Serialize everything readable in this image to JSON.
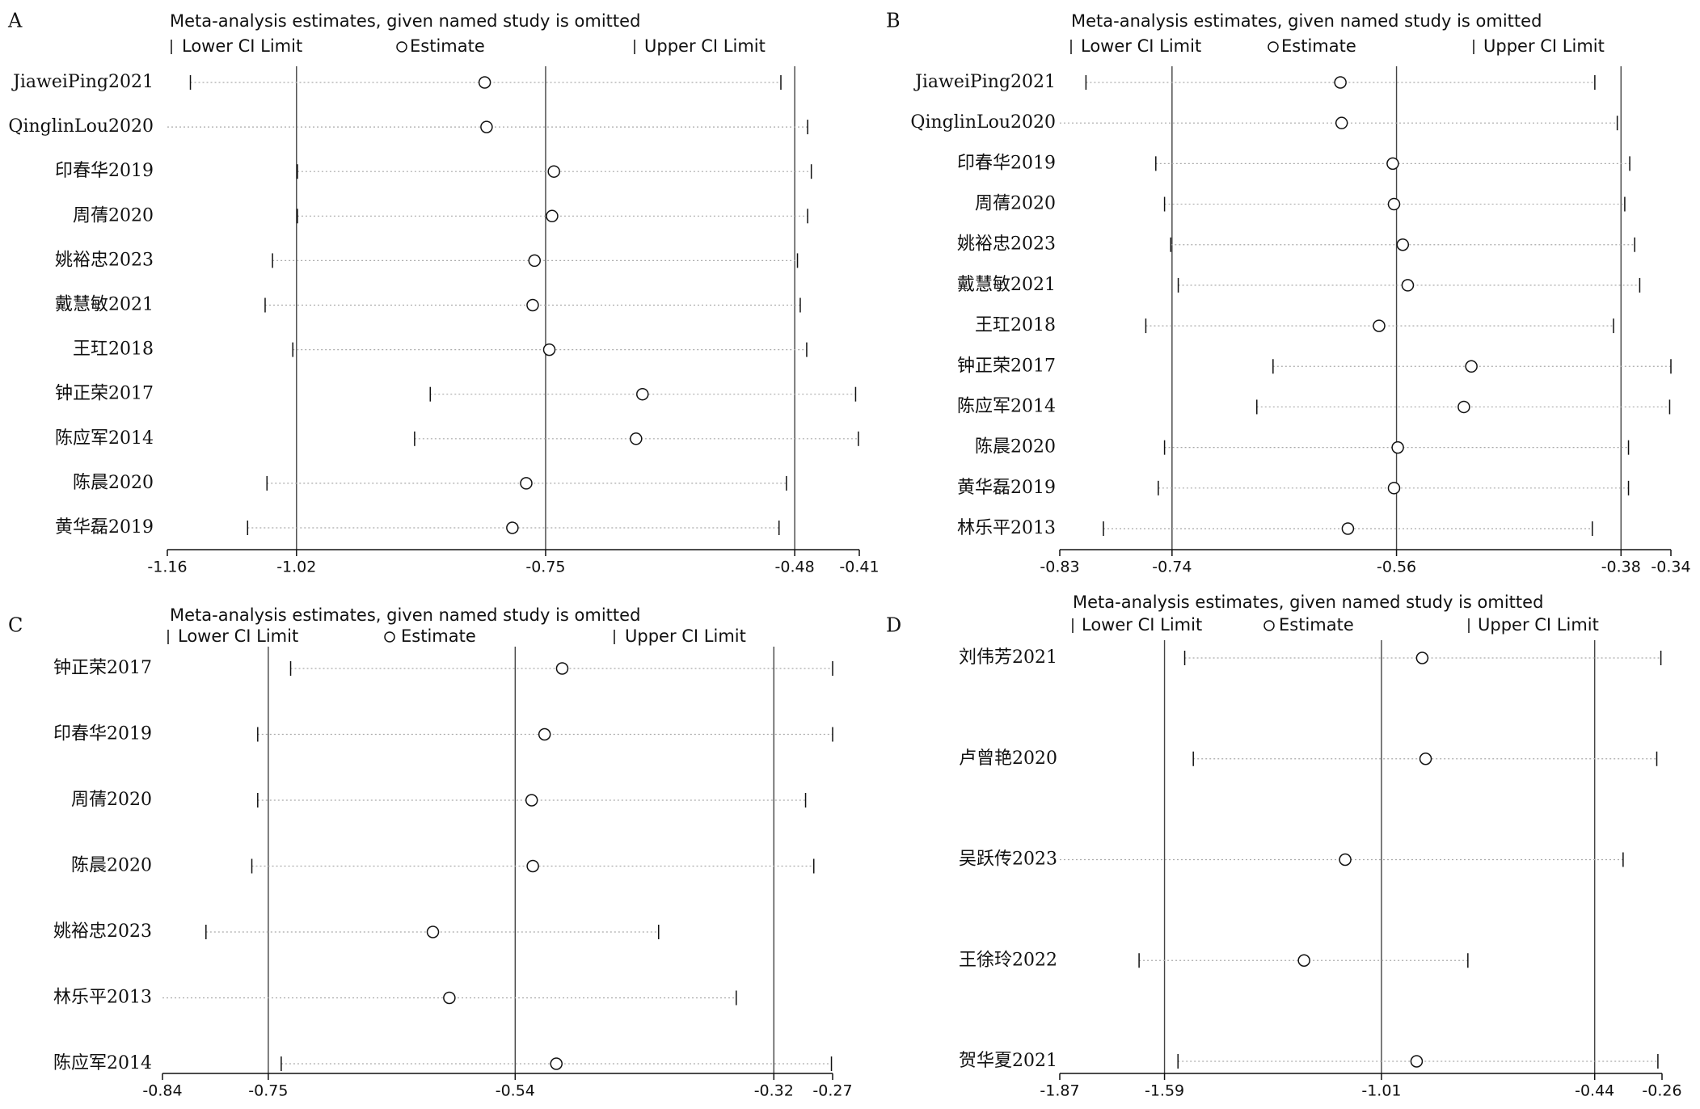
{
  "chart_data": [
    {
      "type": "forest",
      "label": "A",
      "title": "Meta-analysis estimates, given named study is omitted",
      "categories": [
        "JiaweiPing2021",
        "QinglinLou2020",
        "印春华2019",
        "周蒨2020",
        "姚裕忠2023",
        "戴慧敏2021",
        "王玒2018",
        "钟正荣2017",
        "陈应军2014",
        "陈晨2020",
        "黄华磊2019"
      ],
      "series": [
        {
          "name": "Lower CI Limit",
          "values": [
            -1.135,
            null,
            -1.019,
            -1.019,
            -1.046,
            -1.054,
            -1.024,
            -0.875,
            -0.892,
            -1.052,
            -1.073
          ]
        },
        {
          "name": "Estimate",
          "values": [
            -0.816,
            -0.814,
            -0.741,
            -0.743,
            -0.762,
            -0.764,
            -0.746,
            -0.645,
            -0.652,
            -0.771,
            -0.786
          ]
        },
        {
          "name": "Upper CI Limit",
          "values": [
            -0.495,
            -0.466,
            -0.462,
            -0.466,
            -0.477,
            -0.474,
            -0.467,
            -0.414,
            -0.411,
            -0.489,
            -0.497
          ]
        }
      ],
      "xlim": [
        -1.16,
        -0.41
      ],
      "xticks": [
        -1.16,
        -1.02,
        -0.75,
        -0.48,
        -0.41
      ],
      "reference_lines": [
        -1.02,
        -0.75,
        -0.48
      ]
    },
    {
      "type": "forest",
      "label": "B",
      "title": "Meta-analysis estimates, given named study is omitted",
      "categories": [
        "JiaweiPing2021",
        "QinglinLou2020",
        "印春华2019",
        "周蒨2020",
        "姚裕忠2023",
        "戴慧敏2021",
        "王玒2018",
        "钟正荣2017",
        "陈应军2014",
        "陈晨2020",
        "黄华磊2019",
        "林乐平2013"
      ],
      "series": [
        {
          "name": "Lower CI Limit",
          "values": [
            -0.809,
            null,
            -0.753,
            -0.746,
            -0.741,
            -0.735,
            -0.761,
            -0.659,
            -0.672,
            -0.746,
            -0.751,
            -0.795
          ]
        },
        {
          "name": "Estimate",
          "values": [
            -0.605,
            -0.604,
            -0.563,
            -0.562,
            -0.555,
            -0.551,
            -0.574,
            -0.5,
            -0.506,
            -0.559,
            -0.562,
            -0.599
          ]
        },
        {
          "name": "Upper CI Limit",
          "values": [
            -0.401,
            -0.383,
            -0.373,
            -0.377,
            -0.369,
            -0.365,
            -0.386,
            -0.34,
            -0.341,
            -0.374,
            -0.374,
            -0.403
          ]
        }
      ],
      "xlim": [
        -0.83,
        -0.34
      ],
      "xticks": [
        -0.83,
        -0.74,
        -0.56,
        -0.38,
        -0.34
      ],
      "reference_lines": [
        -0.74,
        -0.56,
        -0.38
      ]
    },
    {
      "type": "forest",
      "label": "C",
      "title": "Meta-analysis estimates, given named study is omitted",
      "categories": [
        "钟正荣2017",
        "印春华2019",
        "周蒨2020",
        "陈晨2020",
        "姚裕忠2023",
        "林乐平2013",
        "陈应军2014"
      ],
      "series": [
        {
          "name": "Lower CI Limit",
          "values": [
            -0.731,
            -0.759,
            -0.759,
            -0.764,
            -0.803,
            null,
            -0.739
          ]
        },
        {
          "name": "Estimate",
          "values": [
            -0.5,
            -0.515,
            -0.526,
            -0.525,
            -0.61,
            -0.596,
            -0.505
          ]
        },
        {
          "name": "Upper CI Limit",
          "values": [
            -0.27,
            -0.27,
            -0.293,
            -0.286,
            -0.418,
            -0.352,
            -0.271
          ]
        }
      ],
      "xlim": [
        -0.84,
        -0.27
      ],
      "xticks": [
        -0.84,
        -0.75,
        -0.54,
        -0.32,
        -0.27
      ],
      "reference_lines": [
        -0.75,
        -0.54,
        -0.32
      ]
    },
    {
      "type": "forest",
      "label": "D",
      "title": "Meta-analysis estimates, given named study is omitted",
      "categories": [
        "刘伟芳2021",
        "卢曾艳2020",
        "吴跃传2023",
        "王徐玲2022",
        "贺华夏2021"
      ],
      "series": [
        {
          "name": "Lower CI Limit",
          "values": [
            -1.536,
            -1.513,
            null,
            -1.658,
            -1.554
          ]
        },
        {
          "name": "Estimate",
          "values": [
            -0.901,
            -0.892,
            -1.107,
            -1.217,
            -0.916
          ]
        },
        {
          "name": "Upper CI Limit",
          "values": [
            -0.263,
            -0.274,
            -0.364,
            -0.779,
            -0.271
          ]
        }
      ],
      "xlim": [
        -1.87,
        -0.26
      ],
      "xticks": [
        -1.87,
        -1.59,
        -1.01,
        -0.44,
        -0.26
      ],
      "reference_lines": [
        -1.59,
        -1.01,
        -0.44
      ]
    }
  ]
}
